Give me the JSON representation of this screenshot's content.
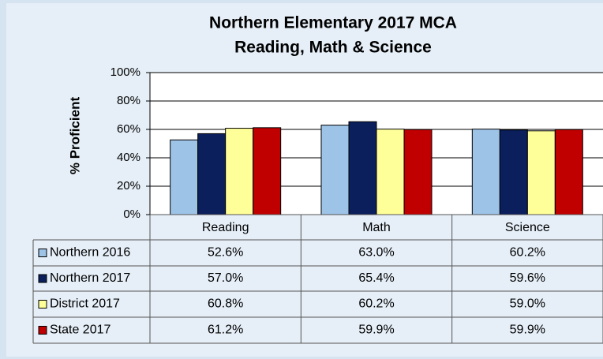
{
  "chart_data": {
    "type": "bar",
    "title": "Northern Elementary 2017 MCA",
    "subtitle": "Reading, Math & Science",
    "ylabel": "% Proficient",
    "categories": [
      "Reading",
      "Math",
      "Science"
    ],
    "series": [
      {
        "name": "Northern 2016",
        "color": "#9dc3e6",
        "values": [
          52.6,
          63.0,
          60.2
        ],
        "value_labels": [
          "52.6%",
          "63.0%",
          "60.2%"
        ]
      },
      {
        "name": "Northern 2017",
        "color": "#0b1f5c",
        "values": [
          57.0,
          65.4,
          59.6
        ],
        "value_labels": [
          "57.0%",
          "65.4%",
          "59.6%"
        ]
      },
      {
        "name": "District 2017",
        "color": "#ffff99",
        "values": [
          60.8,
          60.2,
          59.0
        ],
        "value_labels": [
          "60.8%",
          "60.2%",
          "59.0%"
        ]
      },
      {
        "name": "State 2017",
        "color": "#c00000",
        "values": [
          61.2,
          59.9,
          59.9
        ],
        "value_labels": [
          "61.2%",
          "59.9%",
          "59.9%"
        ]
      }
    ],
    "ylim": [
      0,
      100
    ],
    "yticks": [
      {
        "value": 0,
        "label": "0%"
      },
      {
        "value": 20,
        "label": "20%"
      },
      {
        "value": 40,
        "label": "40%"
      },
      {
        "value": 60,
        "label": "60%"
      },
      {
        "value": 80,
        "label": "80%"
      },
      {
        "value": 100,
        "label": "100%"
      }
    ],
    "grid": true
  }
}
